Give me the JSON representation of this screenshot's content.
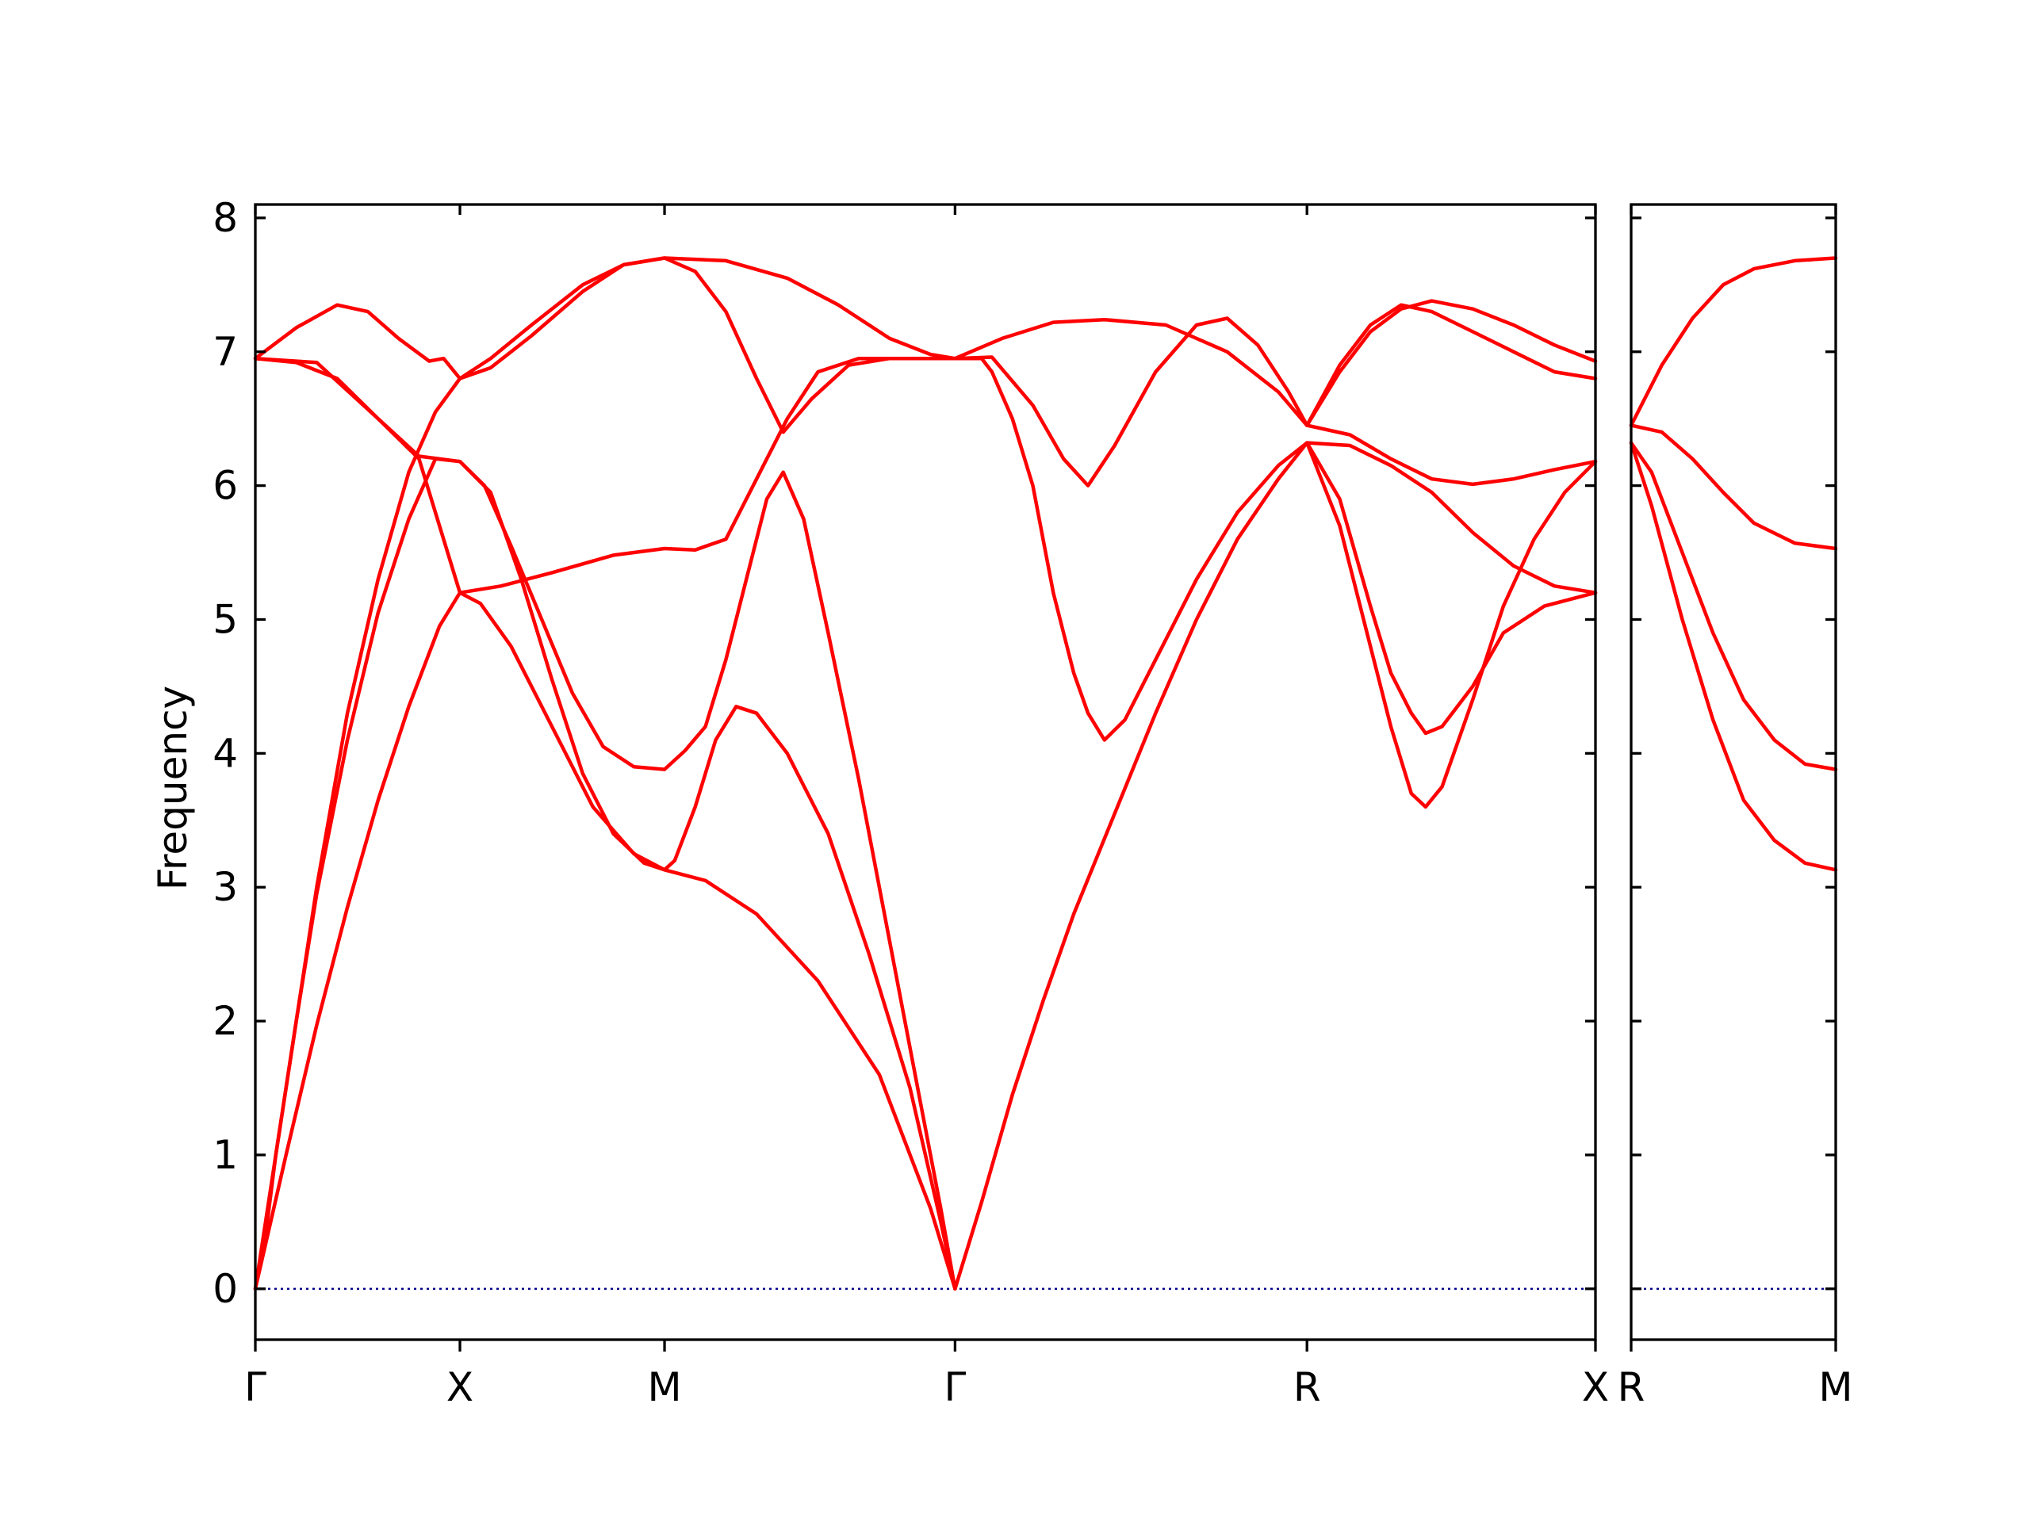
{
  "chart_data": {
    "type": "line",
    "ylabel": "Frequency",
    "ylim": [
      -0.38,
      8.1
    ],
    "yticks": [
      0,
      1,
      2,
      3,
      4,
      5,
      6,
      7,
      8
    ],
    "grid": false,
    "colors": {
      "bands": "#ff0000",
      "zero_line": "#00008b",
      "frame": "#000000"
    },
    "panels": [
      {
        "name": "main",
        "xlim": [
          0,
          6.55
        ],
        "ticks": [
          {
            "x": 0,
            "label": "Γ"
          },
          {
            "x": 1.0,
            "label": "X"
          },
          {
            "x": 2.0,
            "label": "M"
          },
          {
            "x": 3.42,
            "label": "Γ"
          },
          {
            "x": 5.14,
            "label": "R"
          },
          {
            "x": 6.55,
            "label": "X"
          }
        ],
        "bands": [
          [
            [
              0,
              0
            ],
            [
              0.15,
              1.0
            ],
            [
              0.3,
              1.97
            ],
            [
              0.45,
              2.85
            ],
            [
              0.6,
              3.65
            ],
            [
              0.75,
              4.35
            ],
            [
              0.9,
              4.95
            ],
            [
              1.0,
              5.2
            ],
            [
              1.1,
              5.12
            ],
            [
              1.25,
              4.8
            ],
            [
              1.45,
              4.2
            ],
            [
              1.65,
              3.6
            ],
            [
              1.85,
              3.25
            ],
            [
              2.0,
              3.13
            ],
            [
              2.2,
              3.05
            ],
            [
              2.45,
              2.8
            ],
            [
              2.75,
              2.3
            ],
            [
              3.05,
              1.6
            ],
            [
              3.3,
              0.6
            ],
            [
              3.42,
              0
            ]
          ],
          [
            [
              0,
              0
            ],
            [
              0.1,
              1.0
            ],
            [
              0.2,
              2.0
            ],
            [
              0.3,
              2.95
            ],
            [
              0.45,
              4.1
            ],
            [
              0.6,
              5.05
            ],
            [
              0.75,
              5.75
            ],
            [
              0.88,
              6.2
            ],
            [
              1.0,
              6.18
            ],
            [
              1.15,
              5.95
            ],
            [
              1.3,
              5.3
            ],
            [
              1.45,
              4.55
            ],
            [
              1.6,
              3.85
            ],
            [
              1.75,
              3.4
            ],
            [
              1.9,
              3.18
            ],
            [
              2.0,
              3.13
            ],
            [
              2.05,
              3.2
            ],
            [
              2.15,
              3.6
            ],
            [
              2.25,
              4.1
            ],
            [
              2.35,
              4.35
            ],
            [
              2.45,
              4.3
            ],
            [
              2.6,
              4.0
            ],
            [
              2.8,
              3.4
            ],
            [
              3.0,
              2.5
            ],
            [
              3.2,
              1.5
            ],
            [
              3.35,
              0.5
            ],
            [
              3.42,
              0
            ]
          ],
          [
            [
              0,
              6.95
            ],
            [
              0.2,
              6.92
            ],
            [
              0.4,
              6.8
            ],
            [
              0.6,
              6.5
            ],
            [
              0.8,
              6.22
            ],
            [
              1.0,
              6.18
            ],
            [
              1.12,
              6.0
            ],
            [
              1.25,
              5.55
            ],
            [
              1.4,
              5.0
            ],
            [
              1.55,
              4.45
            ],
            [
              1.7,
              4.05
            ],
            [
              1.85,
              3.9
            ],
            [
              2.0,
              3.88
            ],
            [
              2.1,
              4.02
            ],
            [
              2.2,
              4.2
            ],
            [
              2.3,
              4.7
            ],
            [
              2.4,
              5.3
            ],
            [
              2.5,
              5.9
            ],
            [
              2.58,
              6.1
            ],
            [
              2.68,
              5.75
            ],
            [
              2.8,
              4.9
            ],
            [
              2.95,
              3.8
            ],
            [
              3.1,
              2.6
            ],
            [
              3.25,
              1.4
            ],
            [
              3.35,
              0.6
            ],
            [
              3.42,
              0
            ]
          ],
          [
            [
              0,
              6.95
            ],
            [
              0.2,
              7.18
            ],
            [
              0.4,
              7.35
            ],
            [
              0.55,
              7.3
            ],
            [
              0.7,
              7.1
            ],
            [
              0.85,
              6.93
            ],
            [
              0.92,
              6.95
            ],
            [
              1.0,
              6.8
            ],
            [
              1.15,
              6.88
            ],
            [
              1.35,
              7.12
            ],
            [
              1.6,
              7.45
            ],
            [
              1.8,
              7.65
            ],
            [
              2.0,
              7.7
            ],
            [
              2.15,
              7.6
            ],
            [
              2.3,
              7.3
            ],
            [
              2.45,
              6.8
            ],
            [
              2.58,
              6.4
            ],
            [
              2.72,
              6.65
            ],
            [
              2.9,
              6.9
            ],
            [
              3.1,
              6.95
            ],
            [
              3.42,
              6.95
            ],
            [
              3.6,
              6.96
            ],
            [
              3.8,
              6.6
            ],
            [
              3.95,
              6.2
            ],
            [
              4.07,
              6.0
            ],
            [
              4.2,
              6.3
            ],
            [
              4.4,
              6.85
            ],
            [
              4.6,
              7.2
            ],
            [
              4.75,
              7.25
            ],
            [
              4.9,
              7.05
            ],
            [
              5.05,
              6.7
            ],
            [
              5.14,
              6.45
            ],
            [
              5.3,
              6.9
            ],
            [
              5.45,
              7.2
            ],
            [
              5.6,
              7.35
            ],
            [
              5.75,
              7.3
            ],
            [
              5.95,
              7.15
            ],
            [
              6.15,
              7.0
            ],
            [
              6.35,
              6.85
            ],
            [
              6.55,
              6.8
            ]
          ],
          [
            [
              0,
              6.95
            ],
            [
              0.3,
              6.92
            ],
            [
              0.6,
              6.5
            ],
            [
              0.8,
              6.2
            ],
            [
              1.0,
              5.2
            ],
            [
              1.2,
              5.25
            ],
            [
              1.45,
              5.35
            ],
            [
              1.75,
              5.48
            ],
            [
              2.0,
              5.53
            ],
            [
              2.15,
              5.52
            ],
            [
              2.3,
              5.6
            ],
            [
              2.45,
              6.05
            ],
            [
              2.6,
              6.5
            ],
            [
              2.75,
              6.85
            ],
            [
              2.95,
              6.95
            ],
            [
              3.42,
              6.95
            ],
            [
              3.65,
              7.1
            ],
            [
              3.9,
              7.22
            ],
            [
              4.15,
              7.24
            ],
            [
              4.45,
              7.2
            ],
            [
              4.75,
              7.0
            ],
            [
              5.0,
              6.7
            ],
            [
              5.14,
              6.45
            ],
            [
              5.35,
              6.38
            ],
            [
              5.55,
              6.2
            ],
            [
              5.75,
              6.05
            ],
            [
              5.95,
              6.01
            ],
            [
              6.15,
              6.05
            ],
            [
              6.35,
              6.12
            ],
            [
              6.55,
              6.18
            ]
          ],
          [
            [
              0,
              0
            ],
            [
              0.05,
              0.4
            ],
            [
              0.1,
              1.0
            ],
            [
              0.2,
              2.0
            ],
            [
              0.3,
              3.0
            ],
            [
              0.45,
              4.3
            ],
            [
              0.6,
              5.3
            ],
            [
              0.75,
              6.1
            ],
            [
              0.88,
              6.55
            ],
            [
              1.0,
              6.8
            ],
            [
              1.15,
              6.95
            ],
            [
              1.35,
              7.2
            ],
            [
              1.6,
              7.5
            ],
            [
              1.8,
              7.65
            ],
            [
              2.0,
              7.7
            ],
            [
              2.3,
              7.68
            ],
            [
              2.6,
              7.55
            ],
            [
              2.85,
              7.35
            ],
            [
              3.1,
              7.1
            ],
            [
              3.3,
              6.98
            ],
            [
              3.42,
              6.95
            ],
            [
              3.55,
              6.95
            ],
            [
              3.6,
              6.85
            ],
            [
              3.7,
              6.5
            ],
            [
              3.8,
              6.0
            ],
            [
              3.9,
              5.2
            ],
            [
              4.0,
              4.6
            ],
            [
              4.07,
              4.3
            ],
            [
              4.15,
              4.1
            ],
            [
              4.25,
              4.25
            ],
            [
              4.4,
              4.7
            ],
            [
              4.6,
              5.3
            ],
            [
              4.8,
              5.8
            ],
            [
              5.0,
              6.15
            ],
            [
              5.14,
              6.32
            ],
            [
              5.3,
              5.7
            ],
            [
              5.45,
              4.8
            ],
            [
              5.55,
              4.2
            ],
            [
              5.65,
              3.7
            ],
            [
              5.72,
              3.6
            ],
            [
              5.8,
              3.75
            ],
            [
              5.95,
              4.4
            ],
            [
              6.1,
              5.1
            ],
            [
              6.25,
              5.6
            ],
            [
              6.4,
              5.95
            ],
            [
              6.55,
              6.18
            ]
          ],
          [
            [
              3.42,
              0
            ],
            [
              3.55,
              0.65
            ],
            [
              3.7,
              1.45
            ],
            [
              3.85,
              2.15
            ],
            [
              4.0,
              2.8
            ],
            [
              4.2,
              3.55
            ],
            [
              4.4,
              4.3
            ],
            [
              4.6,
              5.0
            ],
            [
              4.8,
              5.6
            ],
            [
              5.0,
              6.05
            ],
            [
              5.14,
              6.32
            ],
            [
              5.3,
              5.9
            ],
            [
              5.45,
              5.1
            ],
            [
              5.55,
              4.6
            ],
            [
              5.65,
              4.3
            ],
            [
              5.72,
              4.15
            ],
            [
              5.8,
              4.2
            ],
            [
              5.95,
              4.5
            ],
            [
              6.1,
              4.9
            ],
            [
              6.3,
              5.1
            ],
            [
              6.55,
              5.2
            ]
          ],
          [
            [
              5.14,
              6.32
            ],
            [
              5.35,
              6.3
            ],
            [
              5.55,
              6.15
            ],
            [
              5.75,
              5.95
            ],
            [
              5.95,
              5.65
            ],
            [
              6.15,
              5.4
            ],
            [
              6.35,
              5.25
            ],
            [
              6.55,
              5.2
            ]
          ],
          [
            [
              5.14,
              6.45
            ],
            [
              5.3,
              6.85
            ],
            [
              5.45,
              7.15
            ],
            [
              5.6,
              7.32
            ],
            [
              5.75,
              7.38
            ],
            [
              5.95,
              7.32
            ],
            [
              6.15,
              7.2
            ],
            [
              6.35,
              7.05
            ],
            [
              6.55,
              6.93
            ]
          ]
        ],
        "zero_line": [
          0,
          6.55
        ]
      },
      {
        "name": "right",
        "xlim": [
          0,
          1.0
        ],
        "ticks": [
          {
            "x": 0,
            "label": "R"
          },
          {
            "x": 1.0,
            "label": "M"
          }
        ],
        "bands": [
          [
            [
              0,
              6.45
            ],
            [
              0.15,
              6.9
            ],
            [
              0.3,
              7.25
            ],
            [
              0.45,
              7.5
            ],
            [
              0.6,
              7.62
            ],
            [
              0.8,
              7.68
            ],
            [
              1.0,
              7.7
            ]
          ],
          [
            [
              0,
              6.45
            ],
            [
              0.15,
              6.4
            ],
            [
              0.3,
              6.2
            ],
            [
              0.45,
              5.95
            ],
            [
              0.6,
              5.72
            ],
            [
              0.8,
              5.57
            ],
            [
              1.0,
              5.53
            ]
          ],
          [
            [
              0,
              6.32
            ],
            [
              0.1,
              6.1
            ],
            [
              0.25,
              5.5
            ],
            [
              0.4,
              4.9
            ],
            [
              0.55,
              4.4
            ],
            [
              0.7,
              4.1
            ],
            [
              0.85,
              3.92
            ],
            [
              1.0,
              3.88
            ]
          ],
          [
            [
              0,
              6.32
            ],
            [
              0.1,
              5.85
            ],
            [
              0.25,
              5.0
            ],
            [
              0.4,
              4.25
            ],
            [
              0.55,
              3.65
            ],
            [
              0.7,
              3.35
            ],
            [
              0.85,
              3.18
            ],
            [
              1.0,
              3.13
            ]
          ]
        ],
        "zero_line": [
          0,
          1.0
        ]
      }
    ]
  }
}
